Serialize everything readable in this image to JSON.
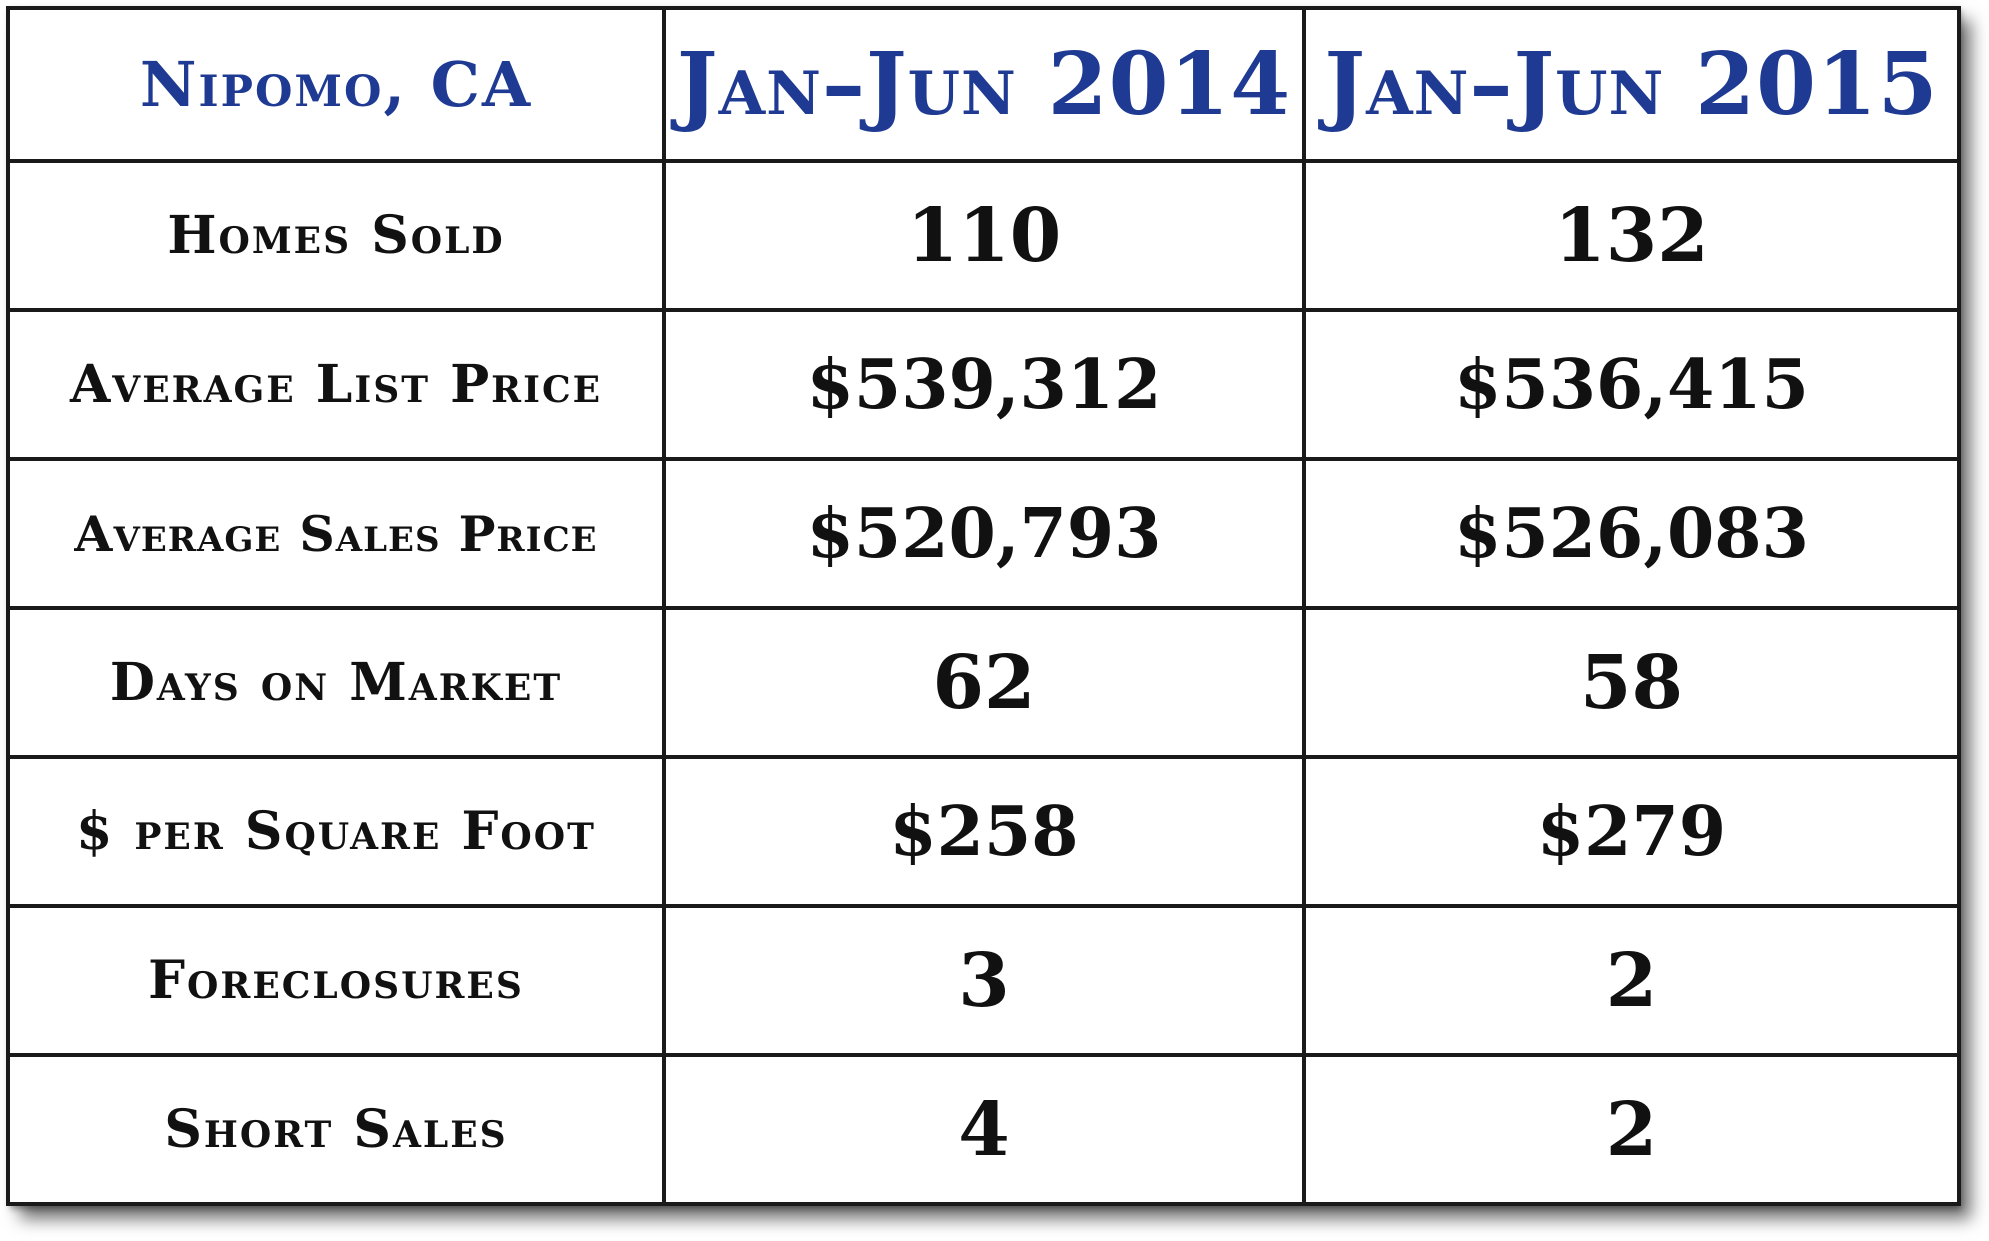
{
  "table": {
    "title": "Nipomo, CA",
    "columns": [
      "Jan–Jun 2014",
      "Jan–Jun 2015"
    ],
    "rows": [
      {
        "label": "Homes Sold",
        "values": [
          "110",
          "132"
        ]
      },
      {
        "label": "Average List Price",
        "values": [
          "$539,312",
          "$536,415"
        ]
      },
      {
        "label": "Average Sales Price",
        "values": [
          "$520,793",
          "$526,083"
        ]
      },
      {
        "label": "Days on Market",
        "values": [
          "62",
          "58"
        ]
      },
      {
        "label": "$ per Square Foot",
        "values": [
          "$258",
          "$279"
        ]
      },
      {
        "label": "Foreclosures",
        "values": [
          "3",
          "2"
        ]
      },
      {
        "label": "Short Sales",
        "values": [
          "4",
          "2"
        ]
      }
    ]
  },
  "colors": {
    "header_text": "#1f3a93",
    "body_text": "#111111",
    "border": "#1a1a1a",
    "background": "#ffffff"
  }
}
